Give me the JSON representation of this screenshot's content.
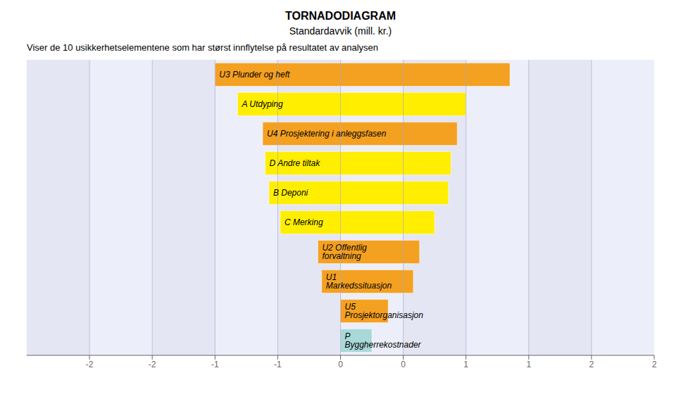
{
  "chart_data": {
    "type": "bar",
    "title": "TORNADODIAGRAM",
    "subtitle": "Standardavvik (mill. kr.)",
    "description": "Viser de 10 usikkerhetselementene som har størst innflytelse på resultatet av analysen",
    "orientation": "horizontal",
    "categories": [
      "U3 Plunder og heft",
      "A Utdyping",
      "U4 Prosjektering i anleggsfasen",
      "D Andre tiltak",
      "B Deponi",
      "C Merking",
      "U2 Offentlig forvaltning",
      "U1 Markedssituasjon",
      "U5 Prosjektorganisasjon",
      "P Byggherrekostnader"
    ],
    "values": [
      [
        -1.0,
        1.35
      ],
      [
        -0.82,
        1.0
      ],
      [
        -0.62,
        0.93
      ],
      [
        -0.6,
        0.88
      ],
      [
        -0.57,
        0.86
      ],
      [
        -0.48,
        0.75
      ],
      [
        -0.18,
        0.63
      ],
      [
        -0.15,
        0.58
      ],
      [
        0.0,
        0.38
      ],
      [
        0.0,
        0.25
      ]
    ],
    "colors": [
      "#F4A020",
      "#FFEE00",
      "#F4A020",
      "#FFEE00",
      "#FFEE00",
      "#FFEE00",
      "#F4A020",
      "#F4A020",
      "#F4A020",
      "#A8D8D8"
    ],
    "xlim": [
      -2.5,
      2.5
    ],
    "xticks": [
      -2,
      {
        "value": -1.5,
        "label": "-2"
      },
      -1,
      {
        "value": -0.5,
        "label": "-1"
      },
      0,
      {
        "value": 0.5,
        "label": "0"
      },
      1,
      {
        "value": 1.5,
        "label": "1"
      },
      2,
      {
        "value": 2.5,
        "label": "2"
      }
    ],
    "grid": true,
    "data_labels": true,
    "tick_labels": "x"
  }
}
